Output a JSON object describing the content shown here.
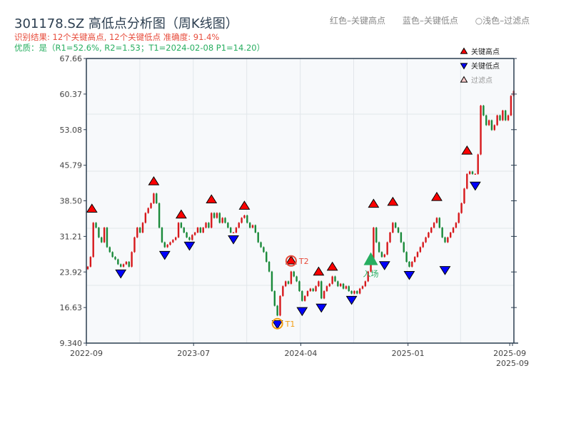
{
  "header": {
    "title": "301178.SZ 高低点分析图（周K线图）",
    "result_line": "识别结果: 12个关键高点, 12个关键低点   准确度: 91.4%",
    "quality_line": "优质：是（R1=52.6%, R2=1.53；T1=2024-02-08 P1=14.20）",
    "hint_high": "红色–关键高点",
    "hint_low": "蓝色–关键低点",
    "hint_filtered": "○浅色–过滤点"
  },
  "colors": {
    "up": "#d7191c",
    "down": "#1a8a3a",
    "high_marker": "#ff0000",
    "low_marker": "#0000ff",
    "entry": "#27ae60",
    "t1": "#f39c12",
    "t2": "#e74c3c",
    "plot_bg": "#f7f9fb",
    "axis": "#2c3e50"
  },
  "chart_data": {
    "type": "candlestick",
    "title": "301178.SZ 高低点分析图（周K线图）",
    "ylim": [
      9.34,
      67.66
    ],
    "y_ticks": [
      "9.340",
      "16.63",
      "23.92",
      "31.21",
      "38.50",
      "45.79",
      "53.08",
      "60.37",
      "67.66"
    ],
    "x_ticks": [
      {
        "index": 0,
        "label": "2022-09"
      },
      {
        "index": 39,
        "label": "2023-07"
      },
      {
        "index": 78,
        "label": "2024-04"
      },
      {
        "index": 117,
        "label": "2025-01"
      },
      {
        "index": 154,
        "label": "2025-09"
      },
      {
        "index": 155,
        "label": "2025-09"
      }
    ],
    "grid": true,
    "legend": {
      "placement": "top-right",
      "items": [
        {
          "label": "关键高点",
          "marker": "triangle-up",
          "color": "#ff0000"
        },
        {
          "label": "关键低点",
          "marker": "triangle-down",
          "color": "#0000ff"
        },
        {
          "label": "过滤点",
          "marker": "triangle-up-light",
          "color": "#ffcccc"
        }
      ]
    },
    "first_open": 24.5,
    "closes": [
      25,
      27,
      34,
      33,
      31,
      30,
      33,
      29,
      28,
      27,
      26.5,
      25.5,
      25,
      25.5,
      26,
      25,
      28,
      31,
      33,
      32,
      34,
      36,
      37,
      38,
      40,
      38,
      33,
      30,
      29,
      29.5,
      30,
      30.5,
      31,
      34,
      33,
      32,
      31,
      30.5,
      31.5,
      32,
      33,
      32,
      33,
      34,
      33,
      36,
      35,
      36,
      34,
      35,
      34,
      33,
      32,
      32,
      33,
      34,
      35,
      35.5,
      34,
      33,
      33.5,
      32,
      30,
      29,
      28,
      26,
      24,
      20,
      17,
      15,
      19,
      21,
      22,
      21.5,
      24,
      23,
      22,
      20,
      18,
      19,
      20,
      20.5,
      20,
      21,
      22,
      18.5,
      20,
      21,
      21.5,
      23,
      22,
      21,
      21.5,
      20.5,
      21,
      20,
      19.5,
      20,
      19.5,
      20.5,
      21,
      22,
      24,
      26,
      33,
      30,
      28,
      27,
      27.5,
      30,
      32,
      34,
      33,
      32,
      30,
      28,
      26,
      25,
      26,
      27,
      28,
      29,
      30,
      31,
      32,
      33,
      34,
      35,
      33,
      31,
      30,
      31,
      32,
      33,
      34,
      36,
      38,
      41,
      44,
      44.5,
      44,
      44,
      48,
      58,
      56,
      54,
      55,
      53,
      54,
      56,
      55,
      57,
      55,
      56,
      60,
      61
    ],
    "key_highs": [
      {
        "index": 1.5,
        "price": 35.9
      },
      {
        "index": 24,
        "price": 41.5
      },
      {
        "index": 34,
        "price": 34.7
      },
      {
        "index": 45,
        "price": 37.8
      },
      {
        "index": 57,
        "price": 36.5
      },
      {
        "index": 74,
        "price": 25.3
      },
      {
        "index": 84,
        "price": 23.0
      },
      {
        "index": 89,
        "price": 24.0
      },
      {
        "index": 104,
        "price": 36.9
      },
      {
        "index": 111,
        "price": 37.3
      },
      {
        "index": 127,
        "price": 38.3
      },
      {
        "index": 138,
        "price": 47.8
      }
    ],
    "key_lows": [
      {
        "index": 12,
        "price": 24.6
      },
      {
        "index": 28,
        "price": 28.4
      },
      {
        "index": 37,
        "price": 30.3
      },
      {
        "index": 53,
        "price": 31.6
      },
      {
        "index": 69,
        "price": 14.2
      },
      {
        "index": 78,
        "price": 16.9
      },
      {
        "index": 85,
        "price": 17.6
      },
      {
        "index": 96,
        "price": 19.2
      },
      {
        "index": 108,
        "price": 26.3
      },
      {
        "index": 117,
        "price": 24.3
      },
      {
        "index": 130,
        "price": 25.3
      },
      {
        "index": 141,
        "price": 42.6
      }
    ],
    "annotations": [
      {
        "label": "T1",
        "index": 69,
        "price": 14.2,
        "color": "#f39c12"
      },
      {
        "label": "T2",
        "index": 74,
        "price": 25.3,
        "color": "#e74c3c"
      },
      {
        "label": "入场",
        "index": 103,
        "price": 26.5,
        "color": "#27ae60"
      }
    ]
  }
}
